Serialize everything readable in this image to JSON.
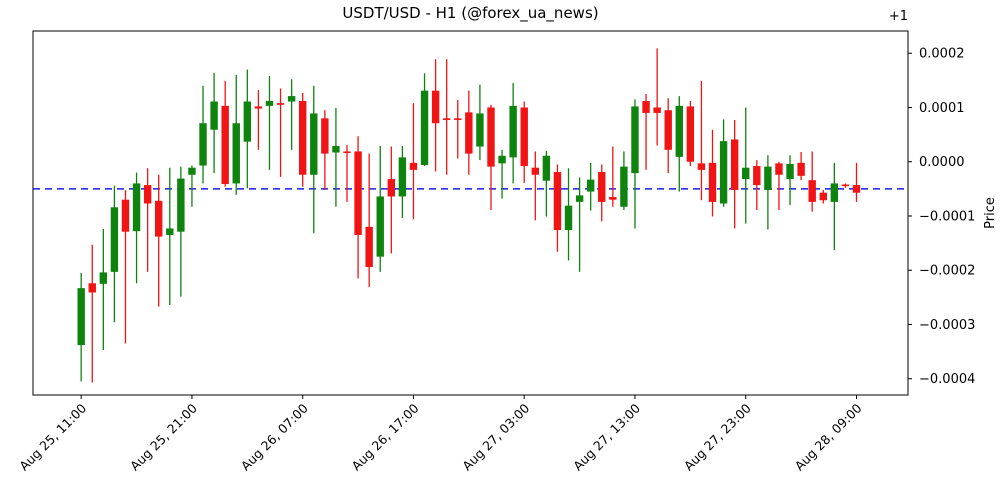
{
  "chart_data": {
    "type": "candlestick",
    "title": "USDT/USD - H1 (@forex_ua_news)",
    "symbol": "USDT/USD",
    "timeframe": "H1",
    "source": "@forex_ua_news",
    "ylabel": "Price",
    "offset_label": "+1",
    "grid": false,
    "legend": false,
    "ylim": [
      -0.00043,
      0.000241
    ],
    "xlim_index": [
      -4.35,
      74.65
    ],
    "y_ticks": [
      0.0002,
      0.0001,
      0.0,
      -0.0001,
      -0.0002,
      -0.0003,
      -0.0004
    ],
    "y_tick_labels": [
      "0.0002",
      "0.0001",
      "0.0000",
      "−0.0001",
      "−0.0002",
      "−0.0003",
      "−0.0004"
    ],
    "x_ticks": [
      {
        "index": 0,
        "label": "Aug 25, 11:00"
      },
      {
        "index": 10,
        "label": "Aug 25, 21:00"
      },
      {
        "index": 20,
        "label": "Aug 26, 07:00"
      },
      {
        "index": 30,
        "label": "Aug 26, 17:00"
      },
      {
        "index": 40,
        "label": "Aug 27, 03:00"
      },
      {
        "index": 50,
        "label": "Aug 27, 13:00"
      },
      {
        "index": 60,
        "label": "Aug 27, 23:00"
      },
      {
        "index": 70,
        "label": "Aug 28, 09:00"
      }
    ],
    "hline": {
      "y": -5e-05,
      "style": "dashed"
    },
    "colors": {
      "up": "#0e840e",
      "down": "#f01414",
      "hline": "#1a1aee"
    },
    "candles": [
      {
        "t": "Aug 25, 11:00",
        "o": -0.000338,
        "h": -0.000205,
        "l": -0.000405,
        "c": -0.000233
      },
      {
        "t": "Aug 25, 12:00",
        "o": -0.000224,
        "h": -0.000153,
        "l": -0.000407,
        "c": -0.000241
      },
      {
        "t": "Aug 25, 13:00",
        "o": -0.000225,
        "h": -0.000124,
        "l": -0.000347,
        "c": -0.000204
      },
      {
        "t": "Aug 25, 14:00",
        "o": -0.000203,
        "h": -4.4e-05,
        "l": -0.000296,
        "c": -8.4e-05
      },
      {
        "t": "Aug 25, 15:00",
        "o": -7e-05,
        "h": -5.2e-05,
        "l": -0.000335,
        "c": -0.000129
      },
      {
        "t": "Aug 25, 16:00",
        "o": -0.000128,
        "h": -2e-05,
        "l": -0.000224,
        "c": -4e-05
      },
      {
        "t": "Aug 25, 17:00",
        "o": -4.3e-05,
        "h": -1.2e-05,
        "l": -0.000203,
        "c": -7.7e-05
      },
      {
        "t": "Aug 25, 18:00",
        "o": -7.2e-05,
        "h": -2.4e-05,
        "l": -0.000267,
        "c": -0.000138
      },
      {
        "t": "Aug 25, 19:00",
        "o": -0.000135,
        "h": -1.1e-05,
        "l": -0.000264,
        "c": -0.000123
      },
      {
        "t": "Aug 25, 20:00",
        "o": -0.000129,
        "h": -9e-06,
        "l": -0.000249,
        "c": -3.1e-05
      },
      {
        "t": "Aug 25, 21:00",
        "o": -2.4e-05,
        "h": -7e-06,
        "l": -8.3e-05,
        "c": -1.1e-05
      },
      {
        "t": "Aug 25, 22:00",
        "o": -7e-06,
        "h": 0.00014,
        "l": -4e-05,
        "c": 7.1e-05
      },
      {
        "t": "Aug 25, 23:00",
        "o": 5.9e-05,
        "h": 0.000164,
        "l": -2.1e-05,
        "c": 0.000111
      },
      {
        "t": "Aug 26, 00:00",
        "o": 0.000103,
        "h": 0.000149,
        "l": -4.6e-05,
        "c": -4.1e-05
      },
      {
        "t": "Aug 26, 01:00",
        "o": -4e-05,
        "h": 0.00016,
        "l": -6.1e-05,
        "c": 7.1e-05
      },
      {
        "t": "Aug 26, 02:00",
        "o": 3.7e-05,
        "h": 0.00017,
        "l": -4.9e-05,
        "c": 0.000111
      },
      {
        "t": "Aug 26, 03:00",
        "o": 0.000102,
        "h": 0.000132,
        "l": 2.2e-05,
        "c": 9.8e-05
      },
      {
        "t": "Aug 26, 04:00",
        "o": 0.000103,
        "h": 0.000158,
        "l": -1.5e-05,
        "c": 0.000112
      },
      {
        "t": "Aug 26, 05:00",
        "o": 0.000108,
        "h": 0.000135,
        "l": -2.8e-05,
        "c": 0.000105
      },
      {
        "t": "Aug 26, 06:00",
        "o": 0.000111,
        "h": 0.000152,
        "l": 2.2e-05,
        "c": 0.000121
      },
      {
        "t": "Aug 26, 07:00",
        "o": 0.000112,
        "h": 0.000127,
        "l": -4.6e-05,
        "c": -2.4e-05
      },
      {
        "t": "Aug 26, 08:00",
        "o": -2.4e-05,
        "h": 0.00014,
        "l": -0.000132,
        "c": 8.9e-05
      },
      {
        "t": "Aug 26, 09:00",
        "o": 8e-05,
        "h": 9.5e-05,
        "l": -5.2e-05,
        "c": 1.5e-05
      },
      {
        "t": "Aug 26, 10:00",
        "o": 1.7e-05,
        "h": 9.9e-05,
        "l": -8.3e-05,
        "c": 2.9e-05
      },
      {
        "t": "Aug 26, 11:00",
        "o": 1.9e-05,
        "h": 3.1e-05,
        "l": -7.4e-05,
        "c": 1.6e-05
      },
      {
        "t": "Aug 26, 12:00",
        "o": 1.9e-05,
        "h": 4.7e-05,
        "l": -0.000215,
        "c": -0.000135
      },
      {
        "t": "Aug 26, 13:00",
        "o": -0.00012,
        "h": 1.5e-05,
        "l": -0.000231,
        "c": -0.000194
      },
      {
        "t": "Aug 26, 14:00",
        "o": -0.000175,
        "h": 2.9e-05,
        "l": -0.000203,
        "c": -6.4e-05
      },
      {
        "t": "Aug 26, 15:00",
        "o": -3.2e-05,
        "h": 2.8e-05,
        "l": -0.000169,
        "c": -6.4e-05
      },
      {
        "t": "Aug 26, 16:00",
        "o": -6.4e-05,
        "h": 2.9e-05,
        "l": -0.000104,
        "c": 8e-06
      },
      {
        "t": "Aug 26, 17:00",
        "o": -2e-06,
        "h": 0.000108,
        "l": -0.000106,
        "c": -1.5e-05
      },
      {
        "t": "Aug 26, 18:00",
        "o": -6e-06,
        "h": 0.000163,
        "l": -8e-06,
        "c": 0.000131
      },
      {
        "t": "Aug 26, 19:00",
        "o": 0.000131,
        "h": 0.000189,
        "l": -1.8e-05,
        "c": 7.1e-05
      },
      {
        "t": "Aug 26, 20:00",
        "o": 8e-05,
        "h": 0.000189,
        "l": -2.4e-05,
        "c": 7.7e-05
      },
      {
        "t": "Aug 26, 21:00",
        "o": 8e-05,
        "h": 0.000114,
        "l": 6e-06,
        "c": 7.7e-05
      },
      {
        "t": "Aug 26, 22:00",
        "o": 9.1e-05,
        "h": 0.000131,
        "l": -2.4e-05,
        "c": 1.5e-05
      },
      {
        "t": "Aug 26, 23:00",
        "o": 2.8e-05,
        "h": 0.000142,
        "l": 3e-06,
        "c": 8.9e-05
      },
      {
        "t": "Aug 27, 00:00",
        "o": 0.0001,
        "h": 0.000105,
        "l": -8.9e-05,
        "c": -9e-06
      },
      {
        "t": "Aug 27, 01:00",
        "o": -3e-06,
        "h": 2.2e-05,
        "l": -6.8e-05,
        "c": 1.1e-05
      },
      {
        "t": "Aug 27, 02:00",
        "o": 8e-06,
        "h": 0.000145,
        "l": -4e-05,
        "c": 0.000103
      },
      {
        "t": "Aug 27, 03:00",
        "o": 0.0001,
        "h": 0.000111,
        "l": -3.9e-05,
        "c": -8e-06
      },
      {
        "t": "Aug 27, 04:00",
        "o": -1.1e-05,
        "h": 1.9e-05,
        "l": -0.000108,
        "c": -2.4e-05
      },
      {
        "t": "Aug 27, 05:00",
        "o": -3.5e-05,
        "h": 2e-05,
        "l": -0.000101,
        "c": 1.1e-05
      },
      {
        "t": "Aug 27, 06:00",
        "o": -1.9e-05,
        "h": -5e-06,
        "l": -0.000166,
        "c": -0.000126
      },
      {
        "t": "Aug 27, 07:00",
        "o": -0.000126,
        "h": -1.2e-05,
        "l": -0.000182,
        "c": -8.1e-05
      },
      {
        "t": "Aug 27, 08:00",
        "o": -7.4e-05,
        "h": -2.9e-05,
        "l": -0.000203,
        "c": -6.2e-05
      },
      {
        "t": "Aug 27, 09:00",
        "o": -5.5e-05,
        "h": -2e-06,
        "l": -9e-05,
        "c": -3.3e-05
      },
      {
        "t": "Aug 27, 10:00",
        "o": -1.9e-05,
        "h": -5e-06,
        "l": -0.00011,
        "c": -7.4e-05
      },
      {
        "t": "Aug 27, 11:00",
        "o": -6.5e-05,
        "h": 2.8e-05,
        "l": -8.3e-05,
        "c": -7e-05
      },
      {
        "t": "Aug 27, 12:00",
        "o": -8.3e-05,
        "h": 1.9e-05,
        "l": -8.9e-05,
        "c": -9e-06
      },
      {
        "t": "Aug 27, 13:00",
        "o": -2.1e-05,
        "h": 0.000115,
        "l": -0.000123,
        "c": 0.000102
      },
      {
        "t": "Aug 27, 14:00",
        "o": 0.000112,
        "h": 0.000125,
        "l": -1.5e-05,
        "c": 9e-05
      },
      {
        "t": "Aug 27, 15:00",
        "o": 0.0001,
        "h": 0.000209,
        "l": 3e-05,
        "c": 9e-05
      },
      {
        "t": "Aug 27, 16:00",
        "o": 9.5e-05,
        "h": 0.000117,
        "l": -2.1e-05,
        "c": 2.2e-05
      },
      {
        "t": "Aug 27, 17:00",
        "o": 9e-06,
        "h": 0.000121,
        "l": -5.5e-05,
        "c": 0.000103
      },
      {
        "t": "Aug 27, 18:00",
        "o": 0.000102,
        "h": 0.000112,
        "l": -8e-06,
        "c": 0.0
      },
      {
        "t": "Aug 27, 19:00",
        "o": -3e-06,
        "h": 0.000149,
        "l": -7.1e-05,
        "c": -1.5e-05
      },
      {
        "t": "Aug 27, 20:00",
        "o": -2e-06,
        "h": 5.9e-05,
        "l": -0.000101,
        "c": -7.4e-05
      },
      {
        "t": "Aug 27, 21:00",
        "o": -7.7e-05,
        "h": 7.8e-05,
        "l": -8.3e-05,
        "c": 3.8e-05
      },
      {
        "t": "Aug 27, 22:00",
        "o": 4.1e-05,
        "h": 7.7e-05,
        "l": -0.000123,
        "c": -5.2e-05
      },
      {
        "t": "Aug 27, 23:00",
        "o": -3.2e-05,
        "h": 0.0001,
        "l": -0.000114,
        "c": -1.1e-05
      },
      {
        "t": "Aug 28, 00:00",
        "o": -8e-06,
        "h": 3e-06,
        "l": -8.9e-05,
        "c": -4.3e-05
      },
      {
        "t": "Aug 28, 01:00",
        "o": -5.2e-05,
        "h": 1.2e-05,
        "l": -0.000125,
        "c": -9e-06
      },
      {
        "t": "Aug 28, 02:00",
        "o": -3e-06,
        "h": 0.0,
        "l": -8.9e-05,
        "c": -2.4e-05
      },
      {
        "t": "Aug 28, 03:00",
        "o": -3.2e-05,
        "h": 1.2e-05,
        "l": -8e-05,
        "c": -4e-06
      },
      {
        "t": "Aug 28, 04:00",
        "o": -2e-06,
        "h": 1.8e-05,
        "l": -3.4e-05,
        "c": -2.6e-05
      },
      {
        "t": "Aug 28, 05:00",
        "o": -3.4e-05,
        "h": 1.9e-05,
        "l": -9.2e-05,
        "c": -7.4e-05
      },
      {
        "t": "Aug 28, 06:00",
        "o": -5.7e-05,
        "h": -5.2e-05,
        "l": -7.7e-05,
        "c": -7.1e-05
      },
      {
        "t": "Aug 28, 07:00",
        "o": -7.4e-05,
        "h": -2e-06,
        "l": -0.000163,
        "c": -4e-05
      },
      {
        "t": "Aug 28, 08:00",
        "o": -4.2e-05,
        "h": -4e-05,
        "l": -4.8e-05,
        "c": -4.5e-05
      },
      {
        "t": "Aug 28, 09:00",
        "o": -4.3e-05,
        "h": -2e-06,
        "l": -7.4e-05,
        "c": -5.7e-05
      }
    ]
  }
}
